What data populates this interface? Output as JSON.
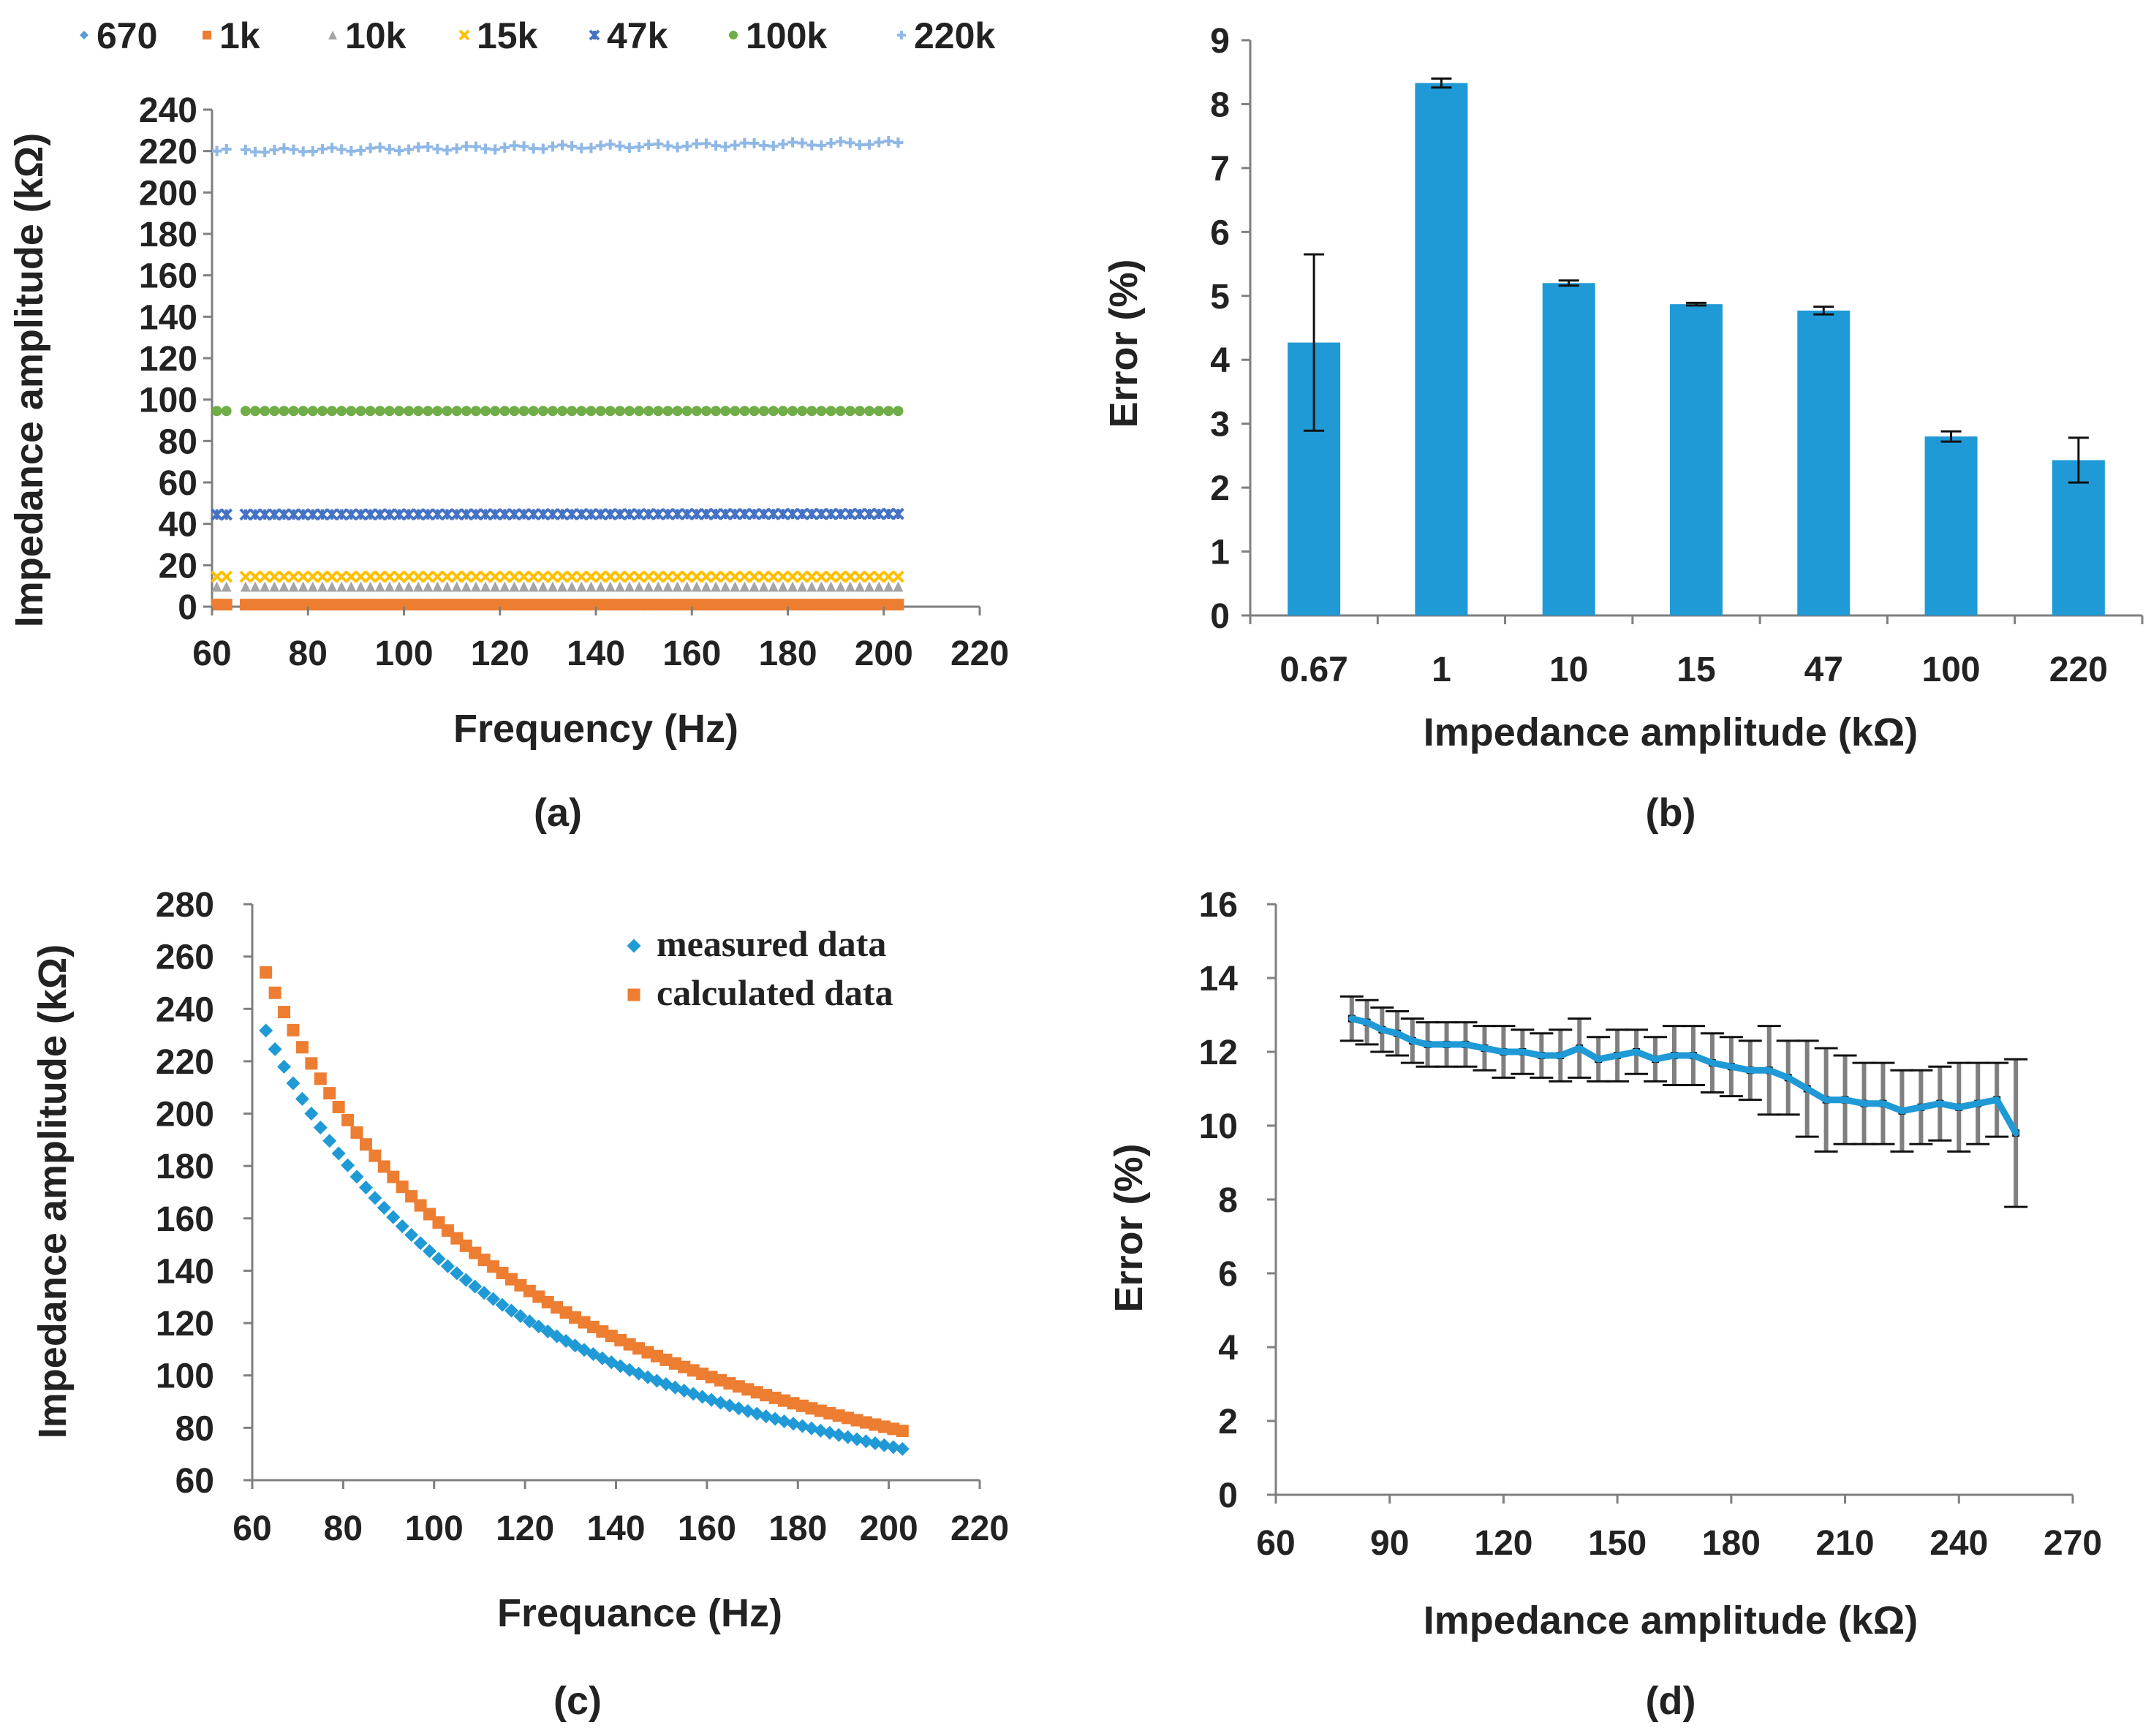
{
  "chart_data": [
    {
      "panel": "(a)",
      "type": "scatter",
      "xlabel": "Frequency (Hz)",
      "ylabel": "Impedance amplitude (kΩ)",
      "xlim": [
        60,
        220
      ],
      "ylim": [
        0,
        240
      ],
      "xticks": [
        "60",
        "80",
        "100",
        "120",
        "140",
        "160",
        "180",
        "200",
        "220"
      ],
      "yticks": [
        "0",
        "20",
        "40",
        "60",
        "80",
        "100",
        "120",
        "140",
        "160",
        "180",
        "200",
        "220",
        "240"
      ],
      "legend_position": "top",
      "x_range": [
        61,
        203
      ],
      "series": [
        {
          "name": "670",
          "marker": "diamond",
          "color": "#5b9bd5",
          "start": 0.67,
          "end": 0.67
        },
        {
          "name": "1k",
          "marker": "square",
          "color": "#ed7d31",
          "start": 1,
          "end": 1
        },
        {
          "name": "10k",
          "marker": "triangle",
          "color": "#a5a5a5",
          "start": 9.7,
          "end": 9.7
        },
        {
          "name": "15k",
          "marker": "x",
          "color": "#ffc000",
          "start": 14.5,
          "end": 14.5
        },
        {
          "name": "47k",
          "marker": "star",
          "color": "#4472c4",
          "start": 44.5,
          "end": 44.8
        },
        {
          "name": "100k",
          "marker": "circle",
          "color": "#70ad47",
          "start": 94.5,
          "end": 94.5
        },
        {
          "name": "220k",
          "marker": "plus",
          "color": "#8fb8e6",
          "start": 220,
          "end": 224
        }
      ]
    },
    {
      "panel": "(b)",
      "type": "bar",
      "xlabel": "Impedance amplitude (kΩ)",
      "ylabel": "Error (%)",
      "ylim": [
        0,
        9
      ],
      "yticks": [
        "0",
        "1",
        "2",
        "3",
        "4",
        "5",
        "6",
        "7",
        "8",
        "9"
      ],
      "categories": [
        "0.67",
        "1",
        "10",
        "15",
        "47",
        "100",
        "220"
      ],
      "values": [
        4.27,
        8.33,
        5.2,
        4.87,
        4.77,
        2.8,
        2.43
      ],
      "errors": [
        1.38,
        0.07,
        0.04,
        0.02,
        0.06,
        0.08,
        0.35
      ],
      "color": "#1f9ad6"
    },
    {
      "panel": "(c)",
      "type": "scatter",
      "xlabel": "Frequance (Hz)",
      "ylabel": "Impedance amplitude (kΩ)",
      "xlim": [
        60,
        220
      ],
      "ylim": [
        60,
        280
      ],
      "xticks": [
        "60",
        "80",
        "100",
        "120",
        "140",
        "160",
        "180",
        "200",
        "220"
      ],
      "yticks": [
        "60",
        "80",
        "100",
        "120",
        "140",
        "160",
        "180",
        "200",
        "220",
        "240",
        "260",
        "280"
      ],
      "legend_position": "top-right",
      "x_range": [
        63,
        203
      ],
      "series": [
        {
          "name": "measured data",
          "marker": "diamond",
          "color": "#1f9ad6",
          "k": 14600
        },
        {
          "name": "calculated data",
          "marker": "square",
          "color": "#ed7d31",
          "k": 16000
        }
      ]
    },
    {
      "panel": "(d)",
      "type": "line",
      "xlabel": "Impedance amplitude (kΩ)",
      "ylabel": "Error  (%)",
      "xlim": [
        60,
        270
      ],
      "ylim": [
        0,
        16
      ],
      "xticks": [
        "60",
        "90",
        "120",
        "150",
        "180",
        "210",
        "240",
        "270"
      ],
      "yticks": [
        "0",
        "2",
        "4",
        "6",
        "8",
        "10",
        "12",
        "14",
        "16"
      ],
      "line_color": "#1f9ad6",
      "errbar_color": "#7f7f7f",
      "x": [
        80,
        84,
        88,
        92,
        96,
        100,
        105,
        110,
        115,
        120,
        125,
        130,
        135,
        140,
        145,
        150,
        155,
        160,
        165,
        170,
        175,
        180,
        185,
        190,
        195,
        200,
        205,
        210,
        215,
        220,
        225,
        230,
        235,
        240,
        245,
        250,
        255
      ],
      "y": [
        12.9,
        12.8,
        12.6,
        12.5,
        12.3,
        12.2,
        12.2,
        12.2,
        12.1,
        12.0,
        12.0,
        11.9,
        11.9,
        12.1,
        11.8,
        11.9,
        12.0,
        11.8,
        11.9,
        11.9,
        11.7,
        11.6,
        11.5,
        11.5,
        11.3,
        11.0,
        10.7,
        10.7,
        10.6,
        10.6,
        10.4,
        10.5,
        10.6,
        10.5,
        10.6,
        10.7,
        9.8
      ],
      "err": [
        0.6,
        0.6,
        0.6,
        0.6,
        0.6,
        0.6,
        0.6,
        0.6,
        0.6,
        0.7,
        0.6,
        0.6,
        0.7,
        0.8,
        0.6,
        0.7,
        0.6,
        0.6,
        0.8,
        0.8,
        0.8,
        0.8,
        0.8,
        1.2,
        1.0,
        1.3,
        1.4,
        1.2,
        1.1,
        1.1,
        1.1,
        1.0,
        1.0,
        1.2,
        1.1,
        1.0,
        2.0
      ]
    }
  ]
}
